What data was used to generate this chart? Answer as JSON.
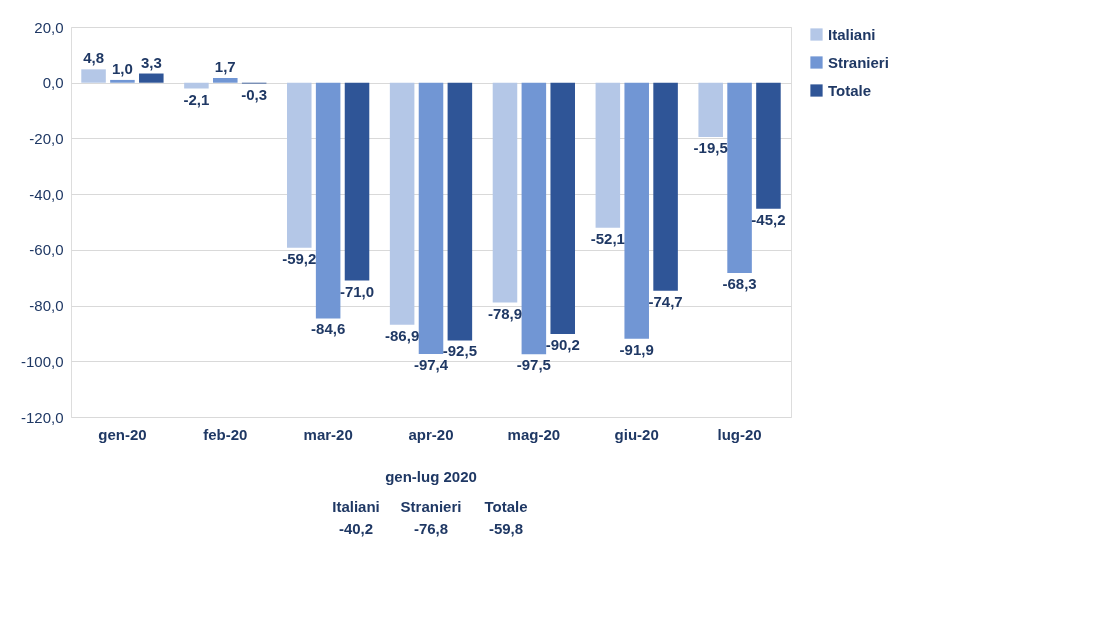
{
  "chart_data": {
    "type": "bar",
    "categories": [
      "gen-20",
      "feb-20",
      "mar-20",
      "apr-20",
      "mag-20",
      "giu-20",
      "lug-20"
    ],
    "series": [
      {
        "name": "Italiani",
        "color": "#b4c7e7",
        "values": [
          4.8,
          -2.1,
          -59.2,
          -86.9,
          -78.9,
          -52.1,
          -19.5
        ],
        "value_labels": [
          "4,8",
          "-2,1",
          "-59,2",
          "-86,9",
          "-78,9",
          "-52,1",
          "-19,5"
        ]
      },
      {
        "name": "Stranieri",
        "color": "#7196d4",
        "values": [
          1.0,
          1.7,
          -84.6,
          -97.4,
          -97.5,
          -91.9,
          -68.3
        ],
        "value_labels": [
          "1,0",
          "1,7",
          "-84,6",
          "-97,4",
          "-97,5",
          "-91,9",
          "-68,3"
        ]
      },
      {
        "name": "Totale",
        "color": "#2f5597",
        "values": [
          3.3,
          -0.3,
          -71.0,
          -92.5,
          -90.2,
          -74.7,
          -45.2
        ],
        "value_labels": [
          "3,3",
          "-0,3",
          "-71,0",
          "-92,5",
          "-90,2",
          "-74,7",
          "-45,2"
        ]
      }
    ],
    "ylim": [
      -120,
      20
    ],
    "yticks": [
      {
        "value": 20,
        "label": "20,0"
      },
      {
        "value": 0,
        "label": "0,0"
      },
      {
        "value": -20,
        "label": "-20,0"
      },
      {
        "value": -40,
        "label": "-40,0"
      },
      {
        "value": -60,
        "label": "-60,0"
      },
      {
        "value": -80,
        "label": "-80,0"
      },
      {
        "value": -100,
        "label": "-100,0"
      },
      {
        "value": -120,
        "label": "-120,0"
      }
    ],
    "grid": "y",
    "legend": "right",
    "annotations": [
      "gen-lug 2020",
      "Italiani",
      "Stranieri",
      "Totale",
      "-40,2",
      "-76,8",
      "-59,8"
    ]
  }
}
